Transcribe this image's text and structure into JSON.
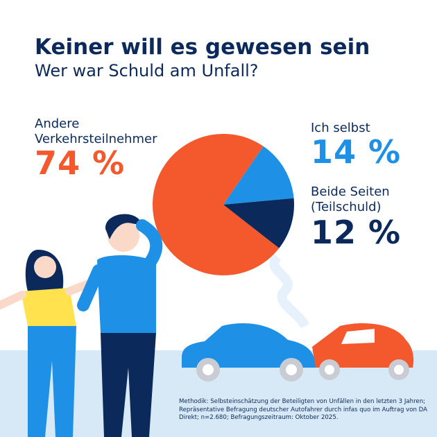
{
  "chart_data": {
    "type": "pie",
    "title": "Keiner will es gewesen sein",
    "subtitle": "Wer war Schuld am Unfall?",
    "categories": [
      "Andere Verkehrsteilnehmer",
      "Ich selbst",
      "Beide Seiten (Teilschuld)"
    ],
    "values": [
      74,
      14,
      12
    ],
    "value_labels": [
      "74 %",
      "14 %",
      "12 %"
    ],
    "colors": [
      "#f4592e",
      "#1e90e6",
      "#0b2a5b"
    ],
    "note": "Methodik: Selbsteinschätzung der Beteiligten von Unfällen in den letzten 3 Jahren; Repräsentative Befragung deutscher Autofahrer durch infas quo im Auftrag von DA Direkt; n=2.680; Befragungszeitraum: Oktober 2025."
  }
}
